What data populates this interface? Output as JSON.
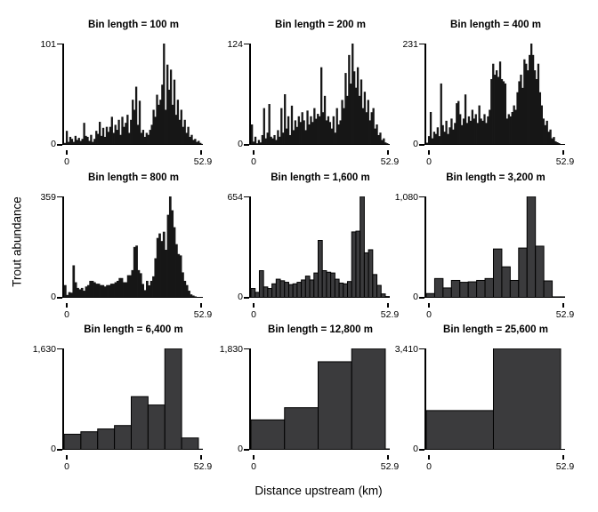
{
  "figure": {
    "ylabel": "Trout abundance",
    "xlabel": "Distance upstream (km)"
  },
  "axes": {
    "x_tick_labels": [
      "0",
      "52.9"
    ],
    "y_zero_label": "0"
  },
  "style": {
    "bar_fill": "#3b3b3d",
    "bar_fill_dense": "#161616",
    "bar_stroke": "#000000"
  },
  "chart_data": [
    {
      "type": "bar",
      "title": "Bin length = 100 m",
      "bin_length_m": 100,
      "ymax_label": "101",
      "ymax_value": 101,
      "x_range": [
        0,
        52.9
      ],
      "values": [
        2,
        14,
        3,
        8,
        6,
        3,
        9,
        5,
        7,
        4,
        6,
        22,
        9,
        8,
        4,
        10,
        3,
        6,
        14,
        11,
        23,
        9,
        17,
        8,
        18,
        13,
        18,
        28,
        12,
        20,
        15,
        25,
        10,
        28,
        18,
        22,
        30,
        12,
        25,
        45,
        35,
        58,
        20,
        44,
        12,
        15,
        8,
        12,
        10,
        15,
        20,
        35,
        28,
        50,
        40,
        45,
        60,
        101,
        35,
        80,
        55,
        75,
        40,
        65,
        30,
        45,
        25,
        35,
        18,
        25,
        12,
        18,
        8,
        10,
        5,
        6,
        3,
        4,
        2,
        1
      ]
    },
    {
      "type": "bar",
      "title": "Bin length = 200 m",
      "bin_length_m": 200,
      "ymax_label": "124",
      "ymax_value": 124,
      "x_range": [
        0,
        52.9
      ],
      "values": [
        25,
        4,
        10,
        2,
        6,
        3,
        12,
        45,
        8,
        15,
        50,
        10,
        8,
        12,
        6,
        18,
        10,
        45,
        15,
        62,
        20,
        35,
        12,
        48,
        18,
        30,
        22,
        35,
        28,
        40,
        30,
        18,
        42,
        25,
        35,
        28,
        45,
        32,
        38,
        35,
        95,
        40,
        60,
        30,
        35,
        28,
        20,
        35,
        15,
        45,
        25,
        30,
        55,
        45,
        88,
        60,
        110,
        75,
        124,
        90,
        70,
        95,
        60,
        80,
        45,
        65,
        40,
        55,
        30,
        40,
        45,
        20,
        25,
        12,
        15,
        6,
        8,
        3,
        2,
        1
      ]
    },
    {
      "type": "bar",
      "title": "Bin length = 400 m",
      "bin_length_m": 400,
      "ymax_label": "231",
      "ymax_value": 231,
      "x_range": [
        0,
        52.9
      ],
      "values": [
        5,
        20,
        75,
        15,
        30,
        25,
        40,
        20,
        140,
        45,
        30,
        55,
        25,
        40,
        60,
        35,
        50,
        95,
        100,
        70,
        45,
        60,
        115,
        50,
        65,
        55,
        80,
        60,
        70,
        50,
        90,
        60,
        55,
        70,
        50,
        65,
        80,
        150,
        185,
        160,
        170,
        155,
        190,
        150,
        145,
        140,
        60,
        70,
        65,
        75,
        90,
        80,
        120,
        145,
        160,
        130,
        195,
        185,
        170,
        205,
        231,
        205,
        170,
        150,
        185,
        120,
        90,
        60,
        45,
        55,
        30,
        35,
        15,
        18,
        8,
        6,
        4,
        2,
        1,
        1
      ]
    },
    {
      "type": "bar",
      "title": "Bin length = 800 m",
      "bin_length_m": 800,
      "ymax_label": "359",
      "ymax_value": 359,
      "x_range": [
        0,
        52.9
      ],
      "values": [
        45,
        10,
        20,
        18,
        115,
        55,
        35,
        30,
        35,
        25,
        40,
        45,
        60,
        60,
        55,
        50,
        50,
        45,
        45,
        40,
        45,
        45,
        50,
        50,
        55,
        60,
        70,
        70,
        55,
        55,
        80,
        80,
        98,
        180,
        185,
        98,
        87,
        49,
        27,
        60,
        44,
        60,
        76,
        140,
        212,
        228,
        201,
        234,
        170,
        294,
        359,
        310,
        250,
        190,
        155,
        150,
        90,
        60,
        45,
        25,
        12,
        8,
        5,
        3,
        2,
        1,
        0
      ]
    },
    {
      "type": "bar",
      "title": "Bin length = 1,600 m",
      "bin_length_m": 1600,
      "ymax_label": "654",
      "ymax_value": 654,
      "x_range": [
        0,
        52.9
      ],
      "values": [
        60,
        35,
        175,
        70,
        60,
        90,
        120,
        110,
        100,
        85,
        90,
        100,
        115,
        140,
        115,
        160,
        370,
        175,
        165,
        160,
        120,
        95,
        90,
        105,
        425,
        430,
        654,
        290,
        310,
        150,
        80,
        25,
        8,
        2
      ]
    },
    {
      "type": "bar",
      "title": "Bin length = 3,200 m",
      "bin_length_m": 3200,
      "ymax_label": "1,080",
      "ymax_value": 1080,
      "x_range": [
        0,
        52.9
      ],
      "values": [
        45,
        205,
        105,
        185,
        165,
        170,
        185,
        205,
        520,
        330,
        185,
        530,
        1080,
        550,
        180,
        10,
        10
      ]
    },
    {
      "type": "bar",
      "title": "Bin length = 6,400 m",
      "bin_length_m": 6400,
      "ymax_label": "1,630",
      "ymax_value": 1630,
      "x_range": [
        0,
        52.9
      ],
      "values": [
        250,
        290,
        335,
        390,
        855,
        720,
        1630,
        190,
        10
      ]
    },
    {
      "type": "bar",
      "title": "Bin length = 12,800 m",
      "bin_length_m": 12800,
      "ymax_label": "1,830",
      "ymax_value": 1830,
      "x_range": [
        0,
        52.9
      ],
      "values": [
        540,
        760,
        1590,
        1830,
        15
      ]
    },
    {
      "type": "bar",
      "title": "Bin length = 25,600 m",
      "bin_length_m": 25600,
      "ymax_label": "3,410",
      "ymax_value": 3410,
      "x_range": [
        0,
        52.9
      ],
      "values": [
        1320,
        3410,
        10
      ]
    }
  ]
}
